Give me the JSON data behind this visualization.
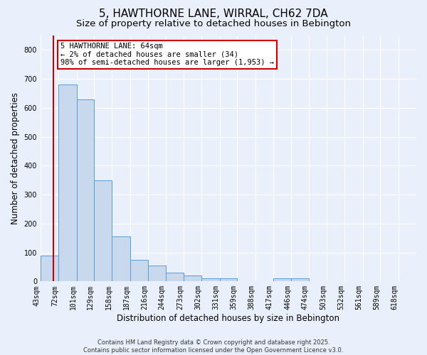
{
  "title": "5, HAWTHORNE LANE, WIRRAL, CH62 7DA",
  "subtitle": "Size of property relative to detached houses in Bebington",
  "xlabel": "Distribution of detached houses by size in Bebington",
  "ylabel": "Number of detached properties",
  "bin_labels": [
    "43sqm",
    "72sqm",
    "101sqm",
    "129sqm",
    "158sqm",
    "187sqm",
    "216sqm",
    "244sqm",
    "273sqm",
    "302sqm",
    "331sqm",
    "359sqm",
    "388sqm",
    "417sqm",
    "446sqm",
    "474sqm",
    "503sqm",
    "532sqm",
    "561sqm",
    "589sqm",
    "618sqm"
  ],
  "bin_edges": [
    43,
    72,
    101,
    129,
    158,
    187,
    216,
    244,
    273,
    302,
    331,
    359,
    388,
    417,
    446,
    474,
    503,
    532,
    561,
    589,
    618,
    647
  ],
  "bar_heights": [
    90,
    680,
    630,
    350,
    155,
    75,
    55,
    30,
    20,
    10,
    10,
    0,
    0,
    10,
    10,
    0,
    0,
    0,
    0,
    0,
    0
  ],
  "bar_color": "#c8d9ee",
  "bar_edge_color": "#5b9bd5",
  "property_size": 64,
  "red_line_color": "#cc0000",
  "annotation_text": "5 HAWTHORNE LANE: 64sqm\n← 2% of detached houses are smaller (34)\n98% of semi-detached houses are larger (1,953) →",
  "annotation_box_color": "#ffffff",
  "annotation_box_edge": "#cc0000",
  "ylim": [
    0,
    850
  ],
  "yticks": [
    0,
    100,
    200,
    300,
    400,
    500,
    600,
    700,
    800
  ],
  "bg_color": "#eaf0fb",
  "footer_line1": "Contains HM Land Registry data © Crown copyright and database right 2025.",
  "footer_line2": "Contains public sector information licensed under the Open Government Licence v3.0.",
  "title_fontsize": 11,
  "subtitle_fontsize": 9.5,
  "tick_fontsize": 7,
  "label_fontsize": 8.5,
  "footer_fontsize": 6
}
